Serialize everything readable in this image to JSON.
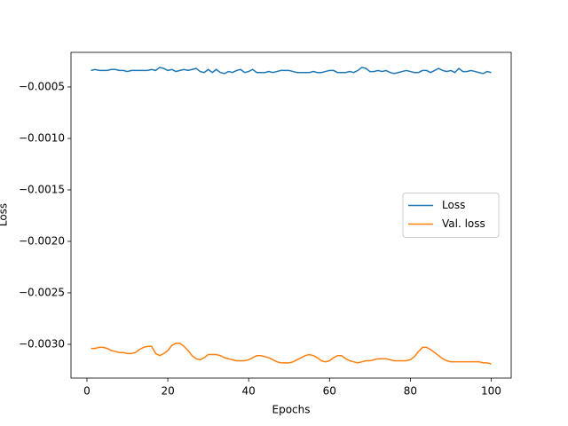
{
  "chart_data": {
    "type": "line",
    "x_label": "Epochs",
    "y_label": "Loss",
    "x": [
      1,
      2,
      3,
      4,
      5,
      6,
      7,
      8,
      9,
      10,
      11,
      12,
      13,
      14,
      15,
      16,
      17,
      18,
      19,
      20,
      21,
      22,
      23,
      24,
      25,
      26,
      27,
      28,
      29,
      30,
      31,
      32,
      33,
      34,
      35,
      36,
      37,
      38,
      39,
      40,
      41,
      42,
      43,
      44,
      45,
      46,
      47,
      48,
      49,
      50,
      51,
      52,
      53,
      54,
      55,
      56,
      57,
      58,
      59,
      60,
      61,
      62,
      63,
      64,
      65,
      66,
      67,
      68,
      69,
      70,
      71,
      72,
      73,
      74,
      75,
      76,
      77,
      78,
      79,
      80,
      81,
      82,
      83,
      84,
      85,
      86,
      87,
      88,
      89,
      90,
      91,
      92,
      93,
      94,
      95,
      96,
      97,
      98,
      99,
      100
    ],
    "series": [
      {
        "name": "Loss",
        "color": "#1f77b4",
        "values": [
          -0.00034,
          -0.00033,
          -0.00034,
          -0.00034,
          -0.00034,
          -0.00033,
          -0.00033,
          -0.00034,
          -0.00034,
          -0.00035,
          -0.00034,
          -0.00034,
          -0.00034,
          -0.00034,
          -0.00034,
          -0.00033,
          -0.00034,
          -0.00031,
          -0.00032,
          -0.00034,
          -0.00033,
          -0.00035,
          -0.00034,
          -0.00033,
          -0.00034,
          -0.00033,
          -0.00032,
          -0.00035,
          -0.00036,
          -0.00033,
          -0.00036,
          -0.00033,
          -0.00036,
          -0.00037,
          -0.00035,
          -0.00036,
          -0.00034,
          -0.00033,
          -0.00036,
          -0.00035,
          -0.00033,
          -0.00036,
          -0.00036,
          -0.00036,
          -0.00035,
          -0.00036,
          -0.00035,
          -0.00034,
          -0.00034,
          -0.00034,
          -0.00035,
          -0.00036,
          -0.00036,
          -0.00036,
          -0.00036,
          -0.00035,
          -0.00036,
          -0.00036,
          -0.00035,
          -0.00034,
          -0.00034,
          -0.00036,
          -0.00036,
          -0.00036,
          -0.00035,
          -0.00036,
          -0.00034,
          -0.00031,
          -0.00032,
          -0.00035,
          -0.00035,
          -0.00034,
          -0.00035,
          -0.00034,
          -0.00036,
          -0.00037,
          -0.00036,
          -0.00035,
          -0.00034,
          -0.00035,
          -0.00036,
          -0.00036,
          -0.00034,
          -0.00034,
          -0.00036,
          -0.00034,
          -0.00032,
          -0.00034,
          -0.00035,
          -0.00034,
          -0.00036,
          -0.00032,
          -0.00035,
          -0.00035,
          -0.00034,
          -0.00035,
          -0.00036,
          -0.00037,
          -0.00035,
          -0.00036
        ]
      },
      {
        "name": "Val. loss",
        "color": "#ff7f0e",
        "values": [
          -0.00304,
          -0.00304,
          -0.00303,
          -0.00303,
          -0.00304,
          -0.00306,
          -0.00307,
          -0.00308,
          -0.00308,
          -0.00309,
          -0.00309,
          -0.00308,
          -0.00305,
          -0.00303,
          -0.00302,
          -0.00302,
          -0.00309,
          -0.00311,
          -0.00309,
          -0.00306,
          -0.00301,
          -0.00299,
          -0.00299,
          -0.00302,
          -0.00306,
          -0.00311,
          -0.00314,
          -0.00315,
          -0.00313,
          -0.0031,
          -0.0031,
          -0.0031,
          -0.00311,
          -0.00313,
          -0.00314,
          -0.00315,
          -0.00316,
          -0.00316,
          -0.00316,
          -0.00315,
          -0.00313,
          -0.00311,
          -0.00311,
          -0.00312,
          -0.00313,
          -0.00315,
          -0.00317,
          -0.00318,
          -0.00318,
          -0.00318,
          -0.00317,
          -0.00315,
          -0.00313,
          -0.00311,
          -0.0031,
          -0.00311,
          -0.00313,
          -0.00316,
          -0.00317,
          -0.00316,
          -0.00313,
          -0.00311,
          -0.00311,
          -0.00314,
          -0.00316,
          -0.00317,
          -0.00318,
          -0.00317,
          -0.00316,
          -0.00316,
          -0.00315,
          -0.00314,
          -0.00314,
          -0.00314,
          -0.00315,
          -0.00316,
          -0.00316,
          -0.00316,
          -0.00316,
          -0.00315,
          -0.00312,
          -0.00307,
          -0.00303,
          -0.00303,
          -0.00305,
          -0.00308,
          -0.00311,
          -0.00314,
          -0.00316,
          -0.00317,
          -0.00317,
          -0.00317,
          -0.00317,
          -0.00317,
          -0.00317,
          -0.00317,
          -0.00317,
          -0.00318,
          -0.00318,
          -0.00319
        ]
      }
    ],
    "xlim": [
      -3.95,
      104.95
    ],
    "xticks": [
      0,
      20,
      40,
      60,
      80,
      100
    ],
    "ylim": [
      -0.003328,
      -0.000164
    ],
    "yticks": [
      {
        "value": -0.003,
        "label": "−0.0030"
      },
      {
        "value": -0.0025,
        "label": "−0.0025"
      },
      {
        "value": -0.002,
        "label": "−0.0020"
      },
      {
        "value": -0.0015,
        "label": "−0.0015"
      },
      {
        "value": -0.001,
        "label": "−0.0010"
      },
      {
        "value": -0.0005,
        "label": "−0.0005"
      }
    ],
    "legend": "center right",
    "grid": false
  }
}
